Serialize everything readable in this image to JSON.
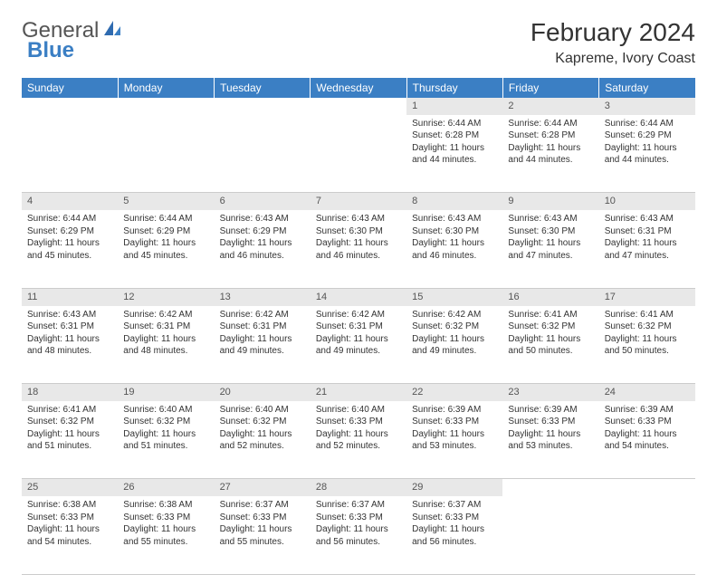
{
  "logo": {
    "general": "General",
    "blue": "Blue"
  },
  "title": "February 2024",
  "location": "Kapreme, Ivory Coast",
  "colors": {
    "header_bg": "#3b7fc4",
    "header_text": "#ffffff",
    "daynum_bg": "#e8e8e8",
    "text": "#333333",
    "border": "#cccccc",
    "page_bg": "#ffffff"
  },
  "day_headers": [
    "Sunday",
    "Monday",
    "Tuesday",
    "Wednesday",
    "Thursday",
    "Friday",
    "Saturday"
  ],
  "weeks": [
    [
      null,
      null,
      null,
      null,
      {
        "n": "1",
        "sr": "Sunrise: 6:44 AM",
        "ss": "Sunset: 6:28 PM",
        "d1": "Daylight: 11 hours",
        "d2": "and 44 minutes."
      },
      {
        "n": "2",
        "sr": "Sunrise: 6:44 AM",
        "ss": "Sunset: 6:28 PM",
        "d1": "Daylight: 11 hours",
        "d2": "and 44 minutes."
      },
      {
        "n": "3",
        "sr": "Sunrise: 6:44 AM",
        "ss": "Sunset: 6:29 PM",
        "d1": "Daylight: 11 hours",
        "d2": "and 44 minutes."
      }
    ],
    [
      {
        "n": "4",
        "sr": "Sunrise: 6:44 AM",
        "ss": "Sunset: 6:29 PM",
        "d1": "Daylight: 11 hours",
        "d2": "and 45 minutes."
      },
      {
        "n": "5",
        "sr": "Sunrise: 6:44 AM",
        "ss": "Sunset: 6:29 PM",
        "d1": "Daylight: 11 hours",
        "d2": "and 45 minutes."
      },
      {
        "n": "6",
        "sr": "Sunrise: 6:43 AM",
        "ss": "Sunset: 6:29 PM",
        "d1": "Daylight: 11 hours",
        "d2": "and 46 minutes."
      },
      {
        "n": "7",
        "sr": "Sunrise: 6:43 AM",
        "ss": "Sunset: 6:30 PM",
        "d1": "Daylight: 11 hours",
        "d2": "and 46 minutes."
      },
      {
        "n": "8",
        "sr": "Sunrise: 6:43 AM",
        "ss": "Sunset: 6:30 PM",
        "d1": "Daylight: 11 hours",
        "d2": "and 46 minutes."
      },
      {
        "n": "9",
        "sr": "Sunrise: 6:43 AM",
        "ss": "Sunset: 6:30 PM",
        "d1": "Daylight: 11 hours",
        "d2": "and 47 minutes."
      },
      {
        "n": "10",
        "sr": "Sunrise: 6:43 AM",
        "ss": "Sunset: 6:31 PM",
        "d1": "Daylight: 11 hours",
        "d2": "and 47 minutes."
      }
    ],
    [
      {
        "n": "11",
        "sr": "Sunrise: 6:43 AM",
        "ss": "Sunset: 6:31 PM",
        "d1": "Daylight: 11 hours",
        "d2": "and 48 minutes."
      },
      {
        "n": "12",
        "sr": "Sunrise: 6:42 AM",
        "ss": "Sunset: 6:31 PM",
        "d1": "Daylight: 11 hours",
        "d2": "and 48 minutes."
      },
      {
        "n": "13",
        "sr": "Sunrise: 6:42 AM",
        "ss": "Sunset: 6:31 PM",
        "d1": "Daylight: 11 hours",
        "d2": "and 49 minutes."
      },
      {
        "n": "14",
        "sr": "Sunrise: 6:42 AM",
        "ss": "Sunset: 6:31 PM",
        "d1": "Daylight: 11 hours",
        "d2": "and 49 minutes."
      },
      {
        "n": "15",
        "sr": "Sunrise: 6:42 AM",
        "ss": "Sunset: 6:32 PM",
        "d1": "Daylight: 11 hours",
        "d2": "and 49 minutes."
      },
      {
        "n": "16",
        "sr": "Sunrise: 6:41 AM",
        "ss": "Sunset: 6:32 PM",
        "d1": "Daylight: 11 hours",
        "d2": "and 50 minutes."
      },
      {
        "n": "17",
        "sr": "Sunrise: 6:41 AM",
        "ss": "Sunset: 6:32 PM",
        "d1": "Daylight: 11 hours",
        "d2": "and 50 minutes."
      }
    ],
    [
      {
        "n": "18",
        "sr": "Sunrise: 6:41 AM",
        "ss": "Sunset: 6:32 PM",
        "d1": "Daylight: 11 hours",
        "d2": "and 51 minutes."
      },
      {
        "n": "19",
        "sr": "Sunrise: 6:40 AM",
        "ss": "Sunset: 6:32 PM",
        "d1": "Daylight: 11 hours",
        "d2": "and 51 minutes."
      },
      {
        "n": "20",
        "sr": "Sunrise: 6:40 AM",
        "ss": "Sunset: 6:32 PM",
        "d1": "Daylight: 11 hours",
        "d2": "and 52 minutes."
      },
      {
        "n": "21",
        "sr": "Sunrise: 6:40 AM",
        "ss": "Sunset: 6:33 PM",
        "d1": "Daylight: 11 hours",
        "d2": "and 52 minutes."
      },
      {
        "n": "22",
        "sr": "Sunrise: 6:39 AM",
        "ss": "Sunset: 6:33 PM",
        "d1": "Daylight: 11 hours",
        "d2": "and 53 minutes."
      },
      {
        "n": "23",
        "sr": "Sunrise: 6:39 AM",
        "ss": "Sunset: 6:33 PM",
        "d1": "Daylight: 11 hours",
        "d2": "and 53 minutes."
      },
      {
        "n": "24",
        "sr": "Sunrise: 6:39 AM",
        "ss": "Sunset: 6:33 PM",
        "d1": "Daylight: 11 hours",
        "d2": "and 54 minutes."
      }
    ],
    [
      {
        "n": "25",
        "sr": "Sunrise: 6:38 AM",
        "ss": "Sunset: 6:33 PM",
        "d1": "Daylight: 11 hours",
        "d2": "and 54 minutes."
      },
      {
        "n": "26",
        "sr": "Sunrise: 6:38 AM",
        "ss": "Sunset: 6:33 PM",
        "d1": "Daylight: 11 hours",
        "d2": "and 55 minutes."
      },
      {
        "n": "27",
        "sr": "Sunrise: 6:37 AM",
        "ss": "Sunset: 6:33 PM",
        "d1": "Daylight: 11 hours",
        "d2": "and 55 minutes."
      },
      {
        "n": "28",
        "sr": "Sunrise: 6:37 AM",
        "ss": "Sunset: 6:33 PM",
        "d1": "Daylight: 11 hours",
        "d2": "and 56 minutes."
      },
      {
        "n": "29",
        "sr": "Sunrise: 6:37 AM",
        "ss": "Sunset: 6:33 PM",
        "d1": "Daylight: 11 hours",
        "d2": "and 56 minutes."
      },
      null,
      null
    ]
  ]
}
